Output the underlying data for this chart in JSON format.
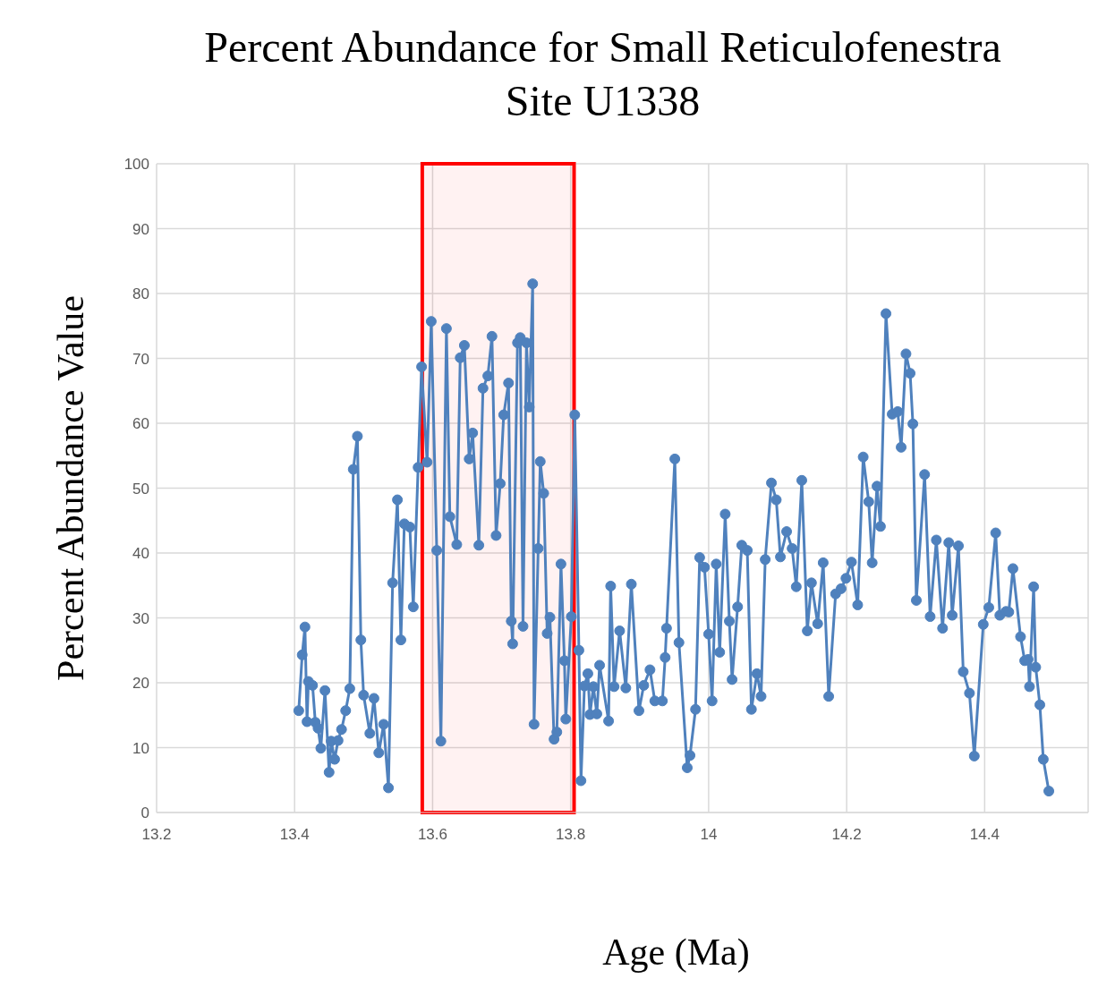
{
  "chart_data": {
    "type": "line",
    "title": "Percent Abundance for Small Reticulofenestra\nSite U1338",
    "xlabel": "Age (Ma)",
    "ylabel": "Percent Abundance Value",
    "x": [
      13.406,
      13.411,
      13.415,
      13.418,
      13.42,
      13.426,
      13.43,
      13.434,
      13.438,
      13.444,
      13.45,
      13.453,
      13.458,
      13.463,
      13.468,
      13.474,
      13.48,
      13.485,
      13.491,
      13.496,
      13.5,
      13.509,
      13.515,
      13.522,
      13.529,
      13.536,
      13.542,
      13.549,
      13.554,
      13.559,
      13.567,
      13.572,
      13.579,
      13.584,
      13.592,
      13.598,
      13.606,
      13.612,
      13.62,
      13.625,
      13.635,
      13.64,
      13.646,
      13.653,
      13.658,
      13.667,
      13.673,
      13.68,
      13.686,
      13.692,
      13.698,
      13.703,
      13.71,
      13.714,
      13.716,
      13.723,
      13.727,
      13.731,
      13.736,
      13.74,
      13.745,
      13.747,
      13.753,
      13.756,
      13.761,
      13.766,
      13.77,
      13.776,
      13.78,
      13.786,
      13.791,
      13.793,
      13.801,
      13.806,
      13.812,
      13.815,
      13.82,
      13.825,
      13.828,
      13.833,
      13.838,
      13.842,
      13.855,
      13.858,
      13.863,
      13.871,
      13.88,
      13.888,
      13.899,
      13.906,
      13.915,
      13.922,
      13.933,
      13.937,
      13.939,
      13.951,
      13.957,
      13.969,
      13.973,
      13.981,
      13.987,
      13.994,
      14.0,
      14.005,
      14.011,
      14.016,
      14.024,
      14.03,
      14.034,
      14.042,
      14.048,
      14.056,
      14.062,
      14.07,
      14.076,
      14.082,
      14.091,
      14.098,
      14.104,
      14.113,
      14.121,
      14.127,
      14.135,
      14.143,
      14.149,
      14.158,
      14.166,
      14.174,
      14.184,
      14.192,
      14.199,
      14.207,
      14.216,
      14.224,
      14.232,
      14.237,
      14.244,
      14.249,
      14.257,
      14.266,
      14.274,
      14.279,
      14.286,
      14.292,
      14.296,
      14.301,
      14.313,
      14.321,
      14.33,
      14.339,
      14.348,
      14.353,
      14.362,
      14.369,
      14.378,
      14.385,
      14.398,
      14.406,
      14.416,
      14.422,
      14.431,
      14.435,
      14.441,
      14.452,
      14.458,
      14.463,
      14.465,
      14.471,
      14.474,
      14.48,
      14.485,
      14.493
    ],
    "series": [
      {
        "color": "#4f81bd",
        "values": [
          15.7,
          24.3,
          28.6,
          14.0,
          20.2,
          19.6,
          13.9,
          13.0,
          9.9,
          18.8,
          6.2,
          11.0,
          8.2,
          11.1,
          12.8,
          15.7,
          19.1,
          52.9,
          58.0,
          26.6,
          18.1,
          12.2,
          17.6,
          9.2,
          13.6,
          3.8,
          35.4,
          48.2,
          26.6,
          44.5,
          44.0,
          31.7,
          53.2,
          68.7,
          54.0,
          75.7,
          40.4,
          11.0,
          74.6,
          45.6,
          41.3,
          70.1,
          72.0,
          54.5,
          58.5,
          41.2,
          65.4,
          67.3,
          73.4,
          42.7,
          50.7,
          61.3,
          66.2,
          29.5,
          26.0,
          72.4,
          73.2,
          28.7,
          72.4,
          62.5,
          81.5,
          13.6,
          40.7,
          54.1,
          49.2,
          27.6,
          30.1,
          11.3,
          12.4,
          38.3,
          23.4,
          14.4,
          30.2,
          61.3,
          25.0,
          4.9,
          19.5,
          21.4,
          15.1,
          19.4,
          15.2,
          22.7,
          14.1,
          34.9,
          19.4,
          28.0,
          19.2,
          35.2,
          15.7,
          19.6,
          22.0,
          17.2,
          17.2,
          23.9,
          28.4,
          54.5,
          26.2,
          6.9,
          8.8,
          15.9,
          39.3,
          37.8,
          27.5,
          17.2,
          38.3,
          24.7,
          46.0,
          29.5,
          20.5,
          31.7,
          41.2,
          40.4,
          15.9,
          21.4,
          17.9,
          39.0,
          50.8,
          48.2,
          39.4,
          43.3,
          40.7,
          34.8,
          51.2,
          28.0,
          35.4,
          29.1,
          38.5,
          17.9,
          33.7,
          34.5,
          36.1,
          38.6,
          32.0,
          54.8,
          47.9,
          38.5,
          50.3,
          44.1,
          76.9,
          61.4,
          61.8,
          56.3,
          70.7,
          67.7,
          59.9,
          32.7,
          52.1,
          30.2,
          42.0,
          28.4,
          41.6,
          30.4,
          41.1,
          21.7,
          18.4,
          8.7,
          29.0,
          31.6,
          43.1,
          30.4,
          31.0,
          30.9,
          37.6,
          27.1,
          23.4,
          23.6,
          19.4,
          34.8,
          22.4,
          16.6,
          8.2,
          3.3
        ]
      }
    ],
    "xlim": [
      13.2,
      14.55
    ],
    "xticks": [
      13.2,
      13.4,
      13.6,
      13.8,
      14,
      14.2,
      14.4
    ],
    "ylim": [
      0,
      100
    ],
    "yticks": [
      0,
      10,
      20,
      30,
      40,
      50,
      60,
      70,
      80,
      90,
      100
    ],
    "bands": [
      {
        "axis": "x",
        "from": 13.585,
        "to": 13.805,
        "color": "#ff0000"
      }
    ],
    "grid": true,
    "legend": false,
    "marker": "circle",
    "line_style": "solid"
  }
}
